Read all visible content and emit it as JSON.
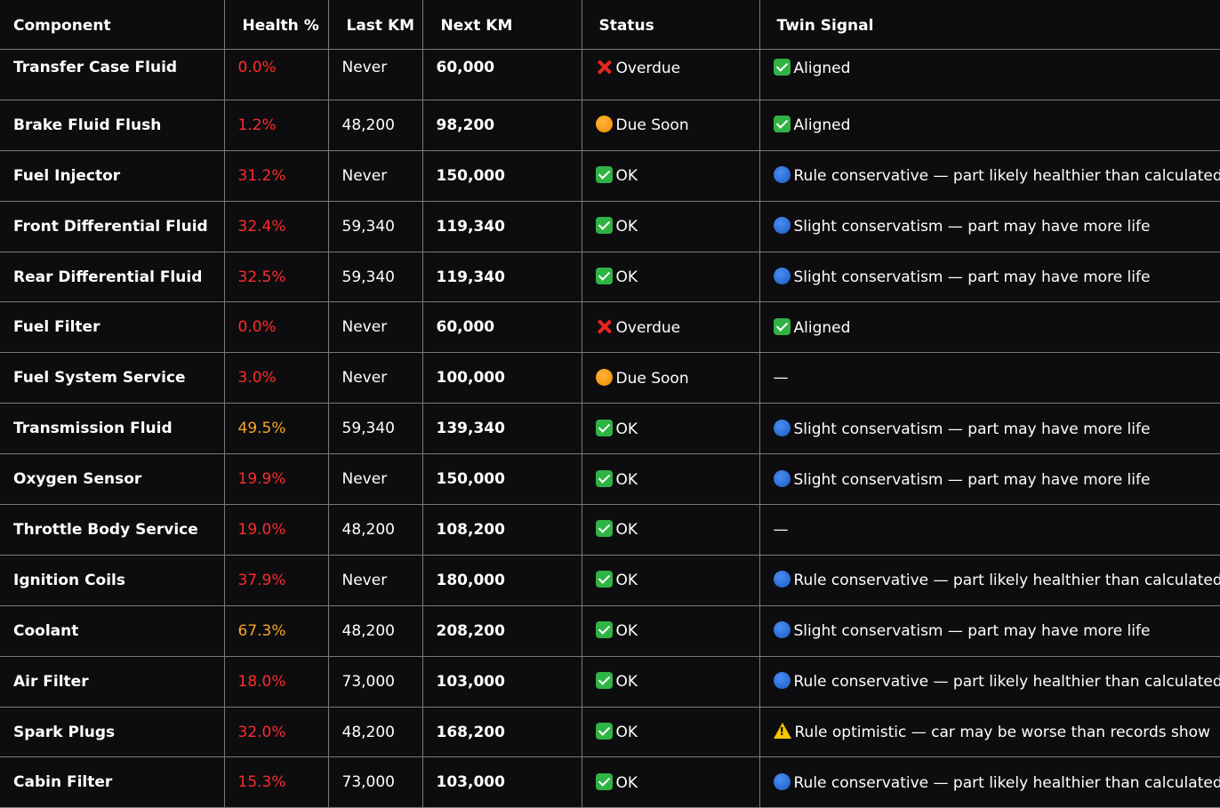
{
  "table": {
    "columns": [
      "Component",
      "Health %",
      "Last KM",
      "Next KM",
      "Status",
      "Twin Signal"
    ],
    "rows": [
      {
        "component": "Transfer Case Fluid",
        "health": "0.0%",
        "health_color": "#ff2b2b",
        "last_km": "Never",
        "next_km": "60,000",
        "status_icon": "cross-mark-icon",
        "status": "Overdue",
        "twin_icon": "check-mark-icon",
        "twin": "Aligned"
      },
      {
        "component": "Brake Fluid Flush",
        "health": "1.2%",
        "health_color": "#ff2b2b",
        "last_km": "48,200",
        "next_km": "98,200",
        "status_icon": "orange-circle-icon",
        "status": "Due Soon",
        "twin_icon": "check-mark-icon",
        "twin": "Aligned"
      },
      {
        "component": "Fuel Injector",
        "health": "31.2%",
        "health_color": "#ff2b2b",
        "last_km": "Never",
        "next_km": "150,000",
        "status_icon": "check-mark-icon",
        "status": "OK",
        "twin_icon": "blue-circle-icon",
        "twin": "Rule conservative — part likely healthier than calculated"
      },
      {
        "component": "Front Differential Fluid",
        "health": "32.4%",
        "health_color": "#ff2b2b",
        "last_km": "59,340",
        "next_km": "119,340",
        "status_icon": "check-mark-icon",
        "status": "OK",
        "twin_icon": "blue-circle-icon",
        "twin": "Slight conservatism — part may have more life"
      },
      {
        "component": "Rear Differential Fluid",
        "health": "32.5%",
        "health_color": "#ff2b2b",
        "last_km": "59,340",
        "next_km": "119,340",
        "status_icon": "check-mark-icon",
        "status": "OK",
        "twin_icon": "blue-circle-icon",
        "twin": "Slight conservatism — part may have more life"
      },
      {
        "component": "Fuel Filter",
        "health": "0.0%",
        "health_color": "#ff2b2b",
        "last_km": "Never",
        "next_km": "60,000",
        "status_icon": "cross-mark-icon",
        "status": "Overdue",
        "twin_icon": "check-mark-icon",
        "twin": "Aligned"
      },
      {
        "component": "Fuel System Service",
        "health": "3.0%",
        "health_color": "#ff2b2b",
        "last_km": "Never",
        "next_km": "100,000",
        "status_icon": "orange-circle-icon",
        "status": "Due Soon",
        "twin_icon": "",
        "twin": "—"
      },
      {
        "component": "Transmission Fluid",
        "health": "49.5%",
        "health_color": "#f5a623",
        "last_km": "59,340",
        "next_km": "139,340",
        "status_icon": "check-mark-icon",
        "status": "OK",
        "twin_icon": "blue-circle-icon",
        "twin": "Slight conservatism — part may have more life"
      },
      {
        "component": "Oxygen Sensor",
        "health": "19.9%",
        "health_color": "#ff2b2b",
        "last_km": "Never",
        "next_km": "150,000",
        "status_icon": "check-mark-icon",
        "status": "OK",
        "twin_icon": "blue-circle-icon",
        "twin": "Slight conservatism — part may have more life"
      },
      {
        "component": "Throttle Body Service",
        "health": "19.0%",
        "health_color": "#ff2b2b",
        "last_km": "48,200",
        "next_km": "108,200",
        "status_icon": "check-mark-icon",
        "status": "OK",
        "twin_icon": "",
        "twin": "—"
      },
      {
        "component": "Ignition Coils",
        "health": "37.9%",
        "health_color": "#ff2b2b",
        "last_km": "Never",
        "next_km": "180,000",
        "status_icon": "check-mark-icon",
        "status": "OK",
        "twin_icon": "blue-circle-icon",
        "twin": "Rule conservative — part likely healthier than calculated"
      },
      {
        "component": "Coolant",
        "health": "67.3%",
        "health_color": "#f5a623",
        "last_km": "48,200",
        "next_km": "208,200",
        "status_icon": "check-mark-icon",
        "status": "OK",
        "twin_icon": "blue-circle-icon",
        "twin": "Slight conservatism — part may have more life"
      },
      {
        "component": "Air Filter",
        "health": "18.0%",
        "health_color": "#ff2b2b",
        "last_km": "73,000",
        "next_km": "103,000",
        "status_icon": "check-mark-icon",
        "status": "OK",
        "twin_icon": "blue-circle-icon",
        "twin": "Rule conservative — part likely healthier than calculated"
      },
      {
        "component": "Spark Plugs",
        "health": "32.0%",
        "health_color": "#ff2b2b",
        "last_km": "48,200",
        "next_km": "168,200",
        "status_icon": "check-mark-icon",
        "status": "OK",
        "twin_icon": "warning-icon",
        "twin": "Rule optimistic — car may be worse than records show"
      },
      {
        "component": "Cabin Filter",
        "health": "15.3%",
        "health_color": "#ff2b2b",
        "last_km": "73,000",
        "next_km": "103,000",
        "status_icon": "check-mark-icon",
        "status": "OK",
        "twin_icon": "blue-circle-icon",
        "twin": "Rule conservative — part likely healthier than calculated"
      }
    ]
  }
}
